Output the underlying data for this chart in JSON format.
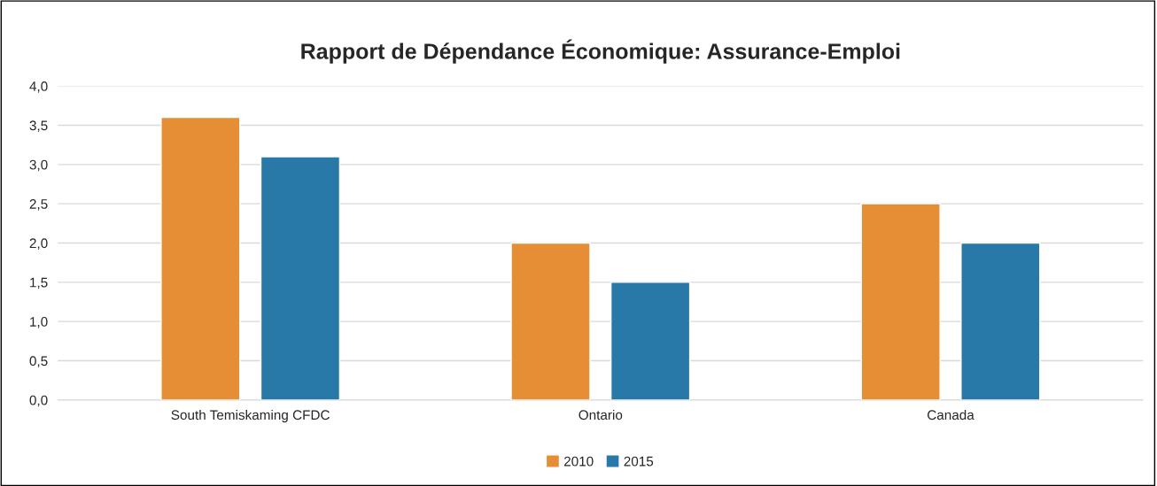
{
  "chart_data": {
    "type": "bar",
    "title": "Rapport de Dépendance Économique: Assurance-Emploi",
    "categories": [
      "South Temiskaming CFDC",
      "Ontario",
      "Canada"
    ],
    "series": [
      {
        "name": "2010",
        "color": "#e58e35",
        "values": [
          3.6,
          2.0,
          2.5
        ]
      },
      {
        "name": "2015",
        "color": "#2878a8",
        "values": [
          3.1,
          1.5,
          2.0
        ]
      }
    ],
    "ylim": [
      0,
      4
    ],
    "yticks": [
      {
        "value": 0,
        "label": "0,0"
      },
      {
        "value": 0.5,
        "label": "0,5"
      },
      {
        "value": 1,
        "label": "1,0"
      },
      {
        "value": 1.5,
        "label": "1,5"
      },
      {
        "value": 2,
        "label": "2,0"
      },
      {
        "value": 2.5,
        "label": "2,5"
      },
      {
        "value": 3,
        "label": "3,0"
      },
      {
        "value": 3.5,
        "label": "3,5"
      },
      {
        "value": 4,
        "label": "4,0"
      }
    ],
    "grid": "y",
    "legend": "bottom"
  }
}
